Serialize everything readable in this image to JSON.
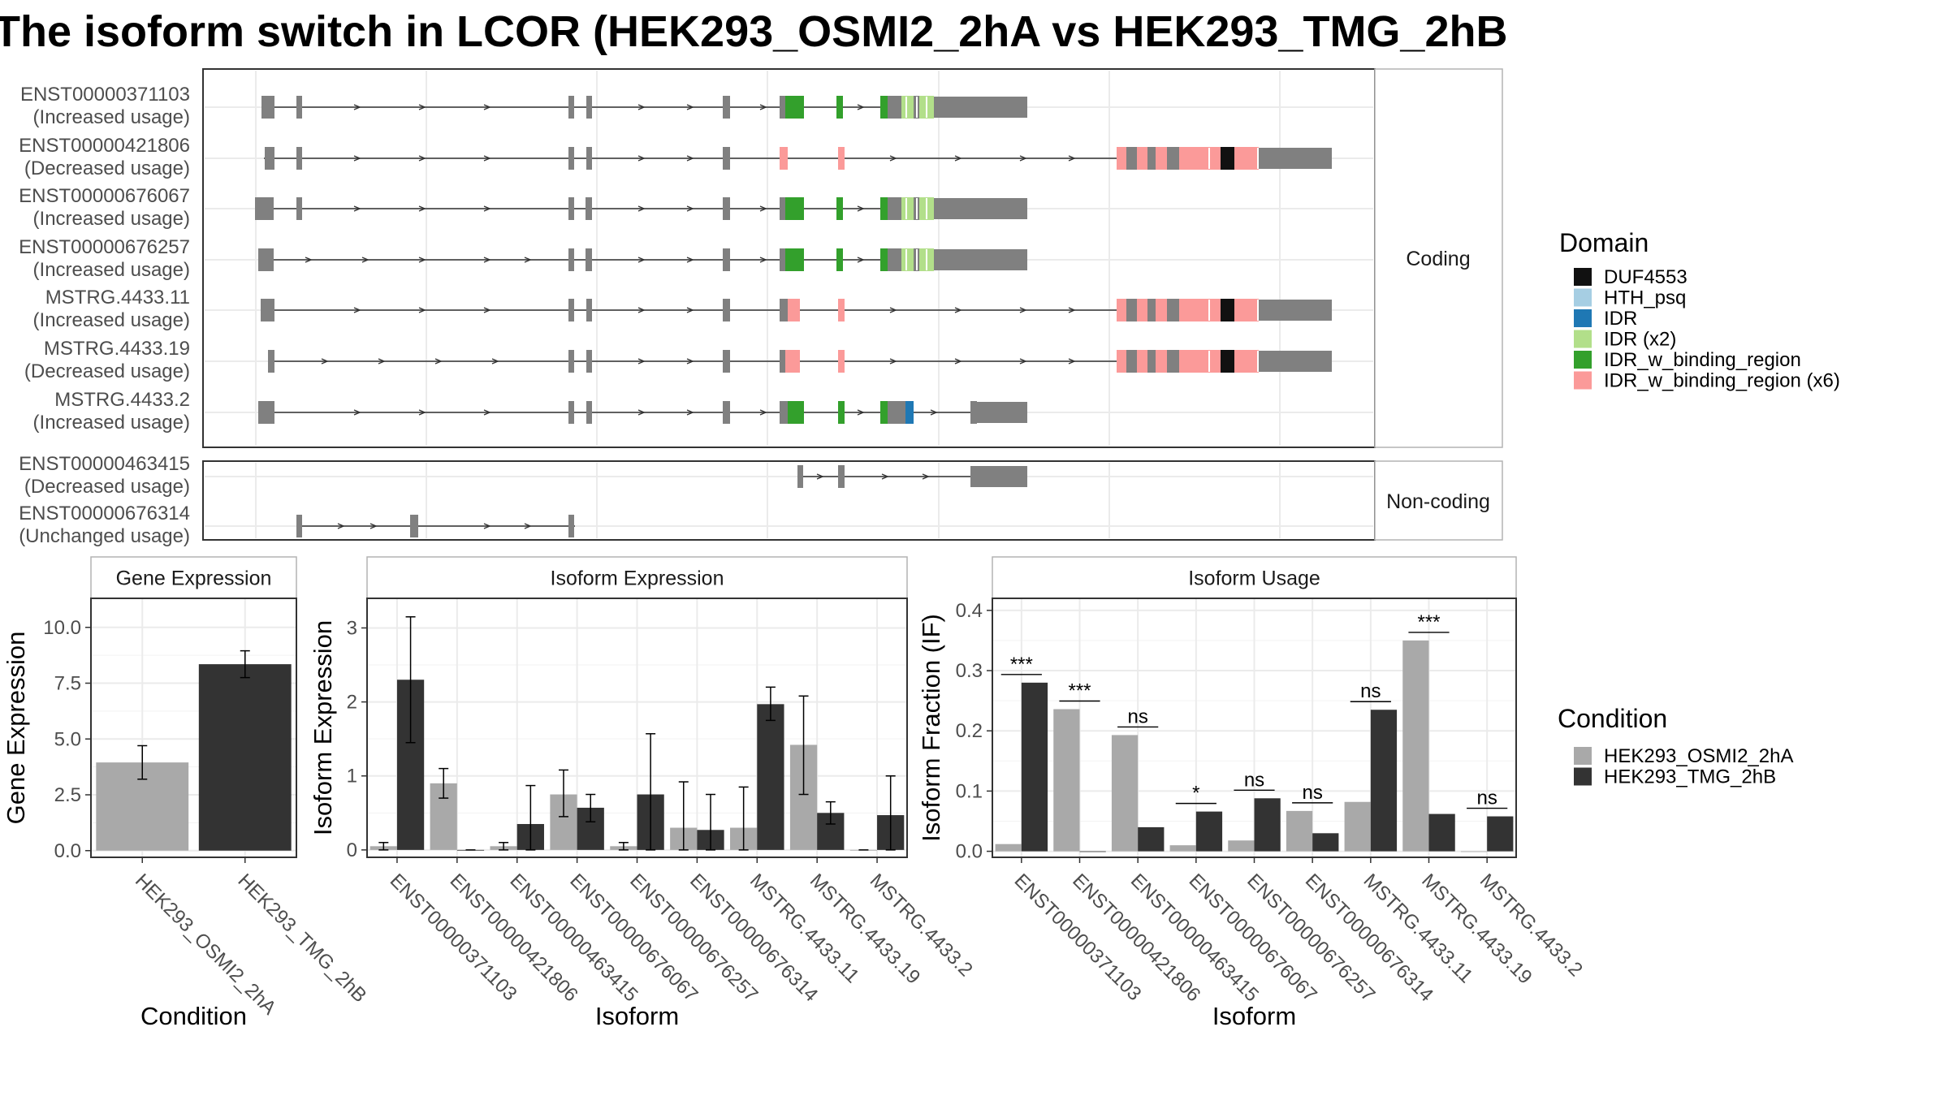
{
  "title": "The isoform switch in LCOR (HEK293_OSMI2_2hA vs HEK293_TMG_2hB",
  "colors": {
    "condition": [
      "#a9a9a9",
      "#333333"
    ],
    "domains": [
      "#111111",
      "#a6cee3",
      "#1f78b4",
      "#b2df8a",
      "#33a02c",
      "#fb9a99"
    ],
    "exon": "#808080"
  },
  "transcripts": {
    "coding_strip": "Coding",
    "noncoding_strip": "Non-coding",
    "coding": [
      {
        "name": "ENST00000371103",
        "usage": "(Increased usage)"
      },
      {
        "name": "ENST00000421806",
        "usage": "(Decreased usage)"
      },
      {
        "name": "ENST00000676067",
        "usage": "(Increased usage)"
      },
      {
        "name": "ENST00000676257",
        "usage": "(Increased usage)"
      },
      {
        "name": "MSTRG.4433.11",
        "usage": "(Increased usage)"
      },
      {
        "name": "MSTRG.4433.19",
        "usage": "(Decreased usage)"
      },
      {
        "name": "MSTRG.4433.2",
        "usage": "(Increased usage)"
      }
    ],
    "noncoding": [
      {
        "name": "ENST00000463415",
        "usage": "(Decreased usage)"
      },
      {
        "name": "ENST00000676314",
        "usage": "(Unchanged usage)"
      }
    ]
  },
  "legend_domain": {
    "title": "Domain",
    "items": [
      "DUF4553",
      "HTH_psq",
      "IDR",
      "IDR (x2)",
      "IDR_w_binding_region",
      "IDR_w_binding_region (x6)"
    ]
  },
  "legend_condition": {
    "title": "Condition",
    "items": [
      "HEK293_OSMI2_2hA",
      "HEK293_TMG_2hB"
    ]
  },
  "chart_data": [
    {
      "type": "bar",
      "title": "Gene Expression",
      "xlabel": "Condition",
      "ylabel": "Gene Expression",
      "categories": [
        "HEK293_OSMI2_2hA",
        "HEK293_TMG_2hB"
      ],
      "values": [
        3.95,
        8.35
      ],
      "error": [
        [
          3.2,
          4.7
        ],
        [
          7.75,
          8.95
        ]
      ],
      "ylim": [
        -0.3,
        11.3
      ],
      "yticks": [
        "0.0",
        "2.5",
        "5.0",
        "7.5",
        "10.0"
      ],
      "ytick_values": [
        0,
        2.5,
        5,
        7.5,
        10
      ],
      "grid": true
    },
    {
      "type": "bar",
      "title": "Isoform Expression",
      "xlabel": "Isoform",
      "ylabel": "Isoform Expression",
      "categories": [
        "ENST00000371103",
        "ENST00000421806",
        "ENST00000463415",
        "ENST00000676067",
        "ENST00000676257",
        "ENST00000676314",
        "MSTRG.4433.11",
        "MSTRG.4433.19",
        "MSTRG.4433.2"
      ],
      "series": [
        {
          "name": "HEK293_OSMI2_2hA",
          "values": [
            0.05,
            0.9,
            0.05,
            0.75,
            0.05,
            0.3,
            0.3,
            1.42,
            0.0
          ],
          "error": [
            [
              0.0,
              0.1
            ],
            [
              0.7,
              1.1
            ],
            [
              0.0,
              0.1
            ],
            [
              0.45,
              1.08
            ],
            [
              0.0,
              0.1
            ],
            [
              0.0,
              0.92
            ],
            [
              0.0,
              0.85
            ],
            [
              0.75,
              2.08
            ],
            [
              0.0,
              0.0
            ]
          ]
        },
        {
          "name": "HEK293_TMG_2hB",
          "values": [
            2.3,
            0.0,
            0.35,
            0.57,
            0.75,
            0.27,
            1.97,
            0.5,
            0.47
          ],
          "error": [
            [
              1.45,
              3.15
            ],
            [
              0.0,
              0.0
            ],
            [
              0.0,
              0.87
            ],
            [
              0.38,
              0.75
            ],
            [
              0.0,
              1.57
            ],
            [
              0.0,
              0.75
            ],
            [
              1.75,
              2.2
            ],
            [
              0.35,
              0.65
            ],
            [
              0.0,
              1.0
            ]
          ]
        }
      ],
      "ylim": [
        -0.1,
        3.4
      ],
      "yticks": [
        "0",
        "1",
        "2",
        "3"
      ],
      "ytick_values": [
        0,
        1,
        2,
        3
      ],
      "grid": true
    },
    {
      "type": "bar",
      "title": "Isoform Usage",
      "xlabel": "Isoform",
      "ylabel": "Isoform Fraction (IF)",
      "categories": [
        "ENST00000371103",
        "ENST00000421806",
        "ENST00000463415",
        "ENST00000676067",
        "ENST00000676257",
        "ENST00000676314",
        "MSTRG.4433.11",
        "MSTRG.4433.19",
        "MSTRG.4433.2"
      ],
      "series": [
        {
          "name": "HEK293_OSMI2_2hA",
          "values": [
            0.012,
            0.236,
            0.193,
            0.01,
            0.018,
            0.067,
            0.082,
            0.35,
            0.0
          ]
        },
        {
          "name": "HEK293_TMG_2hB",
          "values": [
            0.28,
            0.0,
            0.04,
            0.066,
            0.088,
            0.03,
            0.235,
            0.062,
            0.058
          ]
        }
      ],
      "significance": [
        "***",
        "***",
        "ns",
        "*",
        "ns",
        "ns",
        "ns",
        "***",
        "ns"
      ],
      "ylim": [
        -0.01,
        0.42
      ],
      "yticks": [
        "0.0",
        "0.1",
        "0.2",
        "0.3",
        "0.4"
      ],
      "ytick_values": [
        0,
        0.1,
        0.2,
        0.3,
        0.4
      ],
      "grid": true
    }
  ]
}
